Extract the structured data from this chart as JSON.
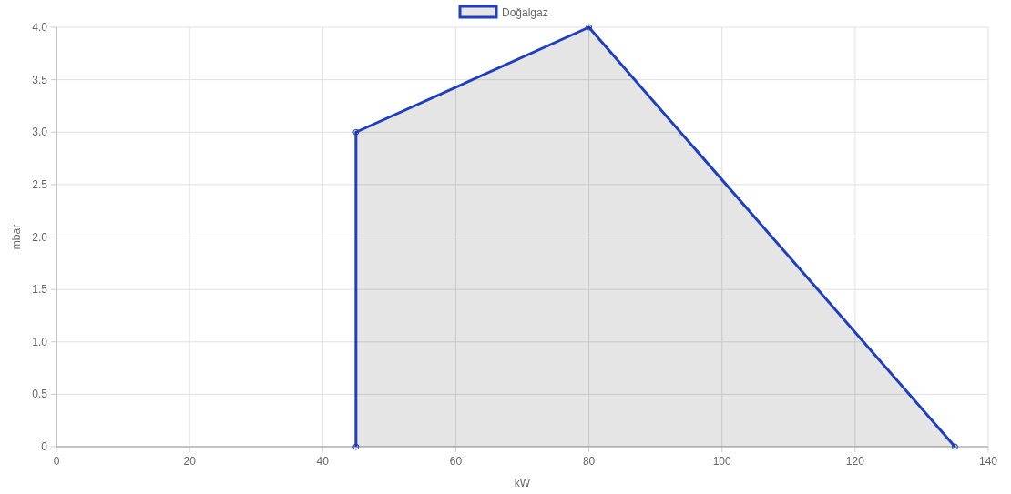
{
  "chart_data": {
    "type": "area",
    "xlabel": "kW",
    "ylabel": "mbar",
    "xlim": [
      0,
      140
    ],
    "xticks": [
      0,
      20,
      40,
      60,
      80,
      100,
      120,
      140
    ],
    "ylim": [
      0,
      4
    ],
    "yticks": [
      0,
      0.5,
      {
        "value": 1,
        "label": "1.0"
      },
      1.5,
      {
        "value": 2,
        "label": "2.0"
      },
      2.5,
      {
        "value": 3,
        "label": "3.0"
      },
      3.5,
      {
        "value": 4,
        "label": "4.0"
      }
    ],
    "grid": true,
    "legend": "top",
    "marker": "circle",
    "line_style": "solid",
    "series": [
      {
        "name": "Doğalgaz",
        "color": "#1f3fbf",
        "x": [
          45,
          45,
          80,
          135
        ],
        "values": [
          0,
          3,
          4,
          0
        ]
      }
    ]
  }
}
